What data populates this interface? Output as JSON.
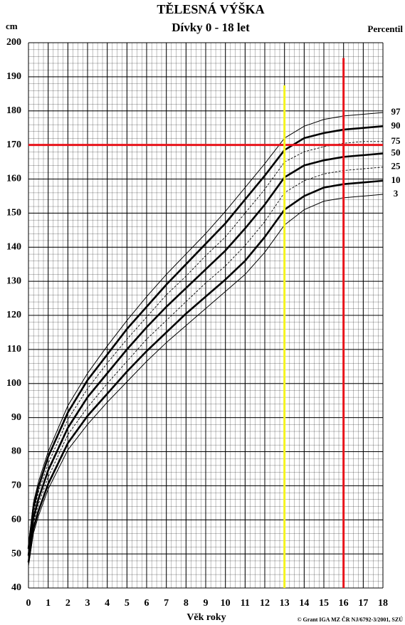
{
  "chart_data": {
    "type": "line",
    "title": "TĚLESNÁ VÝŠKA",
    "subtitle": "Dívky 0 - 18 let",
    "y_label": "cm",
    "x_label": "Věk roky",
    "legend_title": "Percentil",
    "footnote": "© Grant IGA MZ ČR NJ/6792-3/2001, SZÚ",
    "xlim": [
      0,
      18
    ],
    "ylim": [
      40,
      200
    ],
    "xticks": [
      0,
      1,
      2,
      3,
      4,
      5,
      6,
      7,
      8,
      9,
      10,
      11,
      12,
      13,
      14,
      15,
      16,
      17,
      18
    ],
    "yticks": [
      40,
      50,
      60,
      70,
      80,
      90,
      100,
      110,
      120,
      130,
      140,
      150,
      160,
      170,
      180,
      190,
      200
    ],
    "grid": true,
    "x": [
      0,
      0.25,
      0.5,
      1,
      2,
      3,
      4,
      5,
      6,
      7,
      8,
      9,
      10,
      11,
      12,
      13,
      14,
      15,
      16,
      17,
      18
    ],
    "series": [
      {
        "name": "97",
        "color": "#000000",
        "line_width": 1,
        "dashed": false,
        "values": [
          52.5,
          65,
          71,
          80,
          93.5,
          103,
          111,
          118.5,
          125.5,
          132,
          138,
          144,
          150.5,
          157.5,
          164.5,
          172,
          175.5,
          177.5,
          178.5,
          179,
          179.5
        ]
      },
      {
        "name": "90",
        "color": "#000000",
        "line_width": 2.6,
        "dashed": false,
        "values": [
          51.5,
          63.5,
          69.5,
          78.5,
          91.5,
          101,
          108.5,
          116,
          122.5,
          129,
          135,
          141,
          147,
          154,
          161,
          168.5,
          172,
          173.5,
          174.5,
          175,
          175.5
        ]
      },
      {
        "name": "75",
        "color": "#000000",
        "line_width": 0.9,
        "dashed": true,
        "values": [
          50.5,
          62,
          68,
          76.5,
          89.5,
          98.5,
          106,
          113,
          119.5,
          126,
          131.5,
          137.5,
          143,
          150,
          157,
          165,
          168,
          169.5,
          170.5,
          171,
          171
        ]
      },
      {
        "name": "50",
        "color": "#000000",
        "line_width": 2.6,
        "dashed": false,
        "values": [
          49.5,
          60.5,
          66,
          74.5,
          87,
          96,
          103,
          110,
          116.5,
          122.5,
          128,
          133.5,
          139,
          145.5,
          152.5,
          160.5,
          164,
          165.5,
          166.5,
          167,
          167.5
        ]
      },
      {
        "name": "25",
        "color": "#000000",
        "line_width": 0.9,
        "dashed": true,
        "values": [
          48.5,
          59,
          64.5,
          72.5,
          85,
          93,
          100,
          106.5,
          113,
          118.5,
          124,
          129.5,
          134.5,
          140.5,
          147.5,
          156,
          159.5,
          161.5,
          162.5,
          163,
          163.5
        ]
      },
      {
        "name": "10",
        "color": "#000000",
        "line_width": 2.6,
        "dashed": false,
        "values": [
          47.5,
          57.5,
          62.5,
          70.5,
          82.5,
          90.5,
          97,
          103.5,
          109.5,
          115,
          120.5,
          125.5,
          130.5,
          136,
          143,
          151,
          155,
          157.5,
          158.5,
          159,
          159.5
        ]
      },
      {
        "name": "3",
        "color": "#000000",
        "line_width": 1,
        "dashed": false,
        "values": [
          46.5,
          56,
          61,
          69,
          80.5,
          88,
          94.5,
          100.5,
          106.5,
          112,
          117,
          122,
          127,
          132,
          138.5,
          146.5,
          151,
          153.5,
          154.5,
          155,
          155.5
        ]
      }
    ],
    "reference_lines": [
      {
        "axis": "y",
        "value": 170,
        "color": "#e8141b",
        "span": [
          0,
          18
        ]
      },
      {
        "axis": "x",
        "value": 13,
        "color": "#f5f51c",
        "span": [
          40,
          187.5
        ]
      },
      {
        "axis": "x",
        "value": 16,
        "color": "#e8141b",
        "span": [
          40,
          195.5
        ]
      }
    ]
  }
}
